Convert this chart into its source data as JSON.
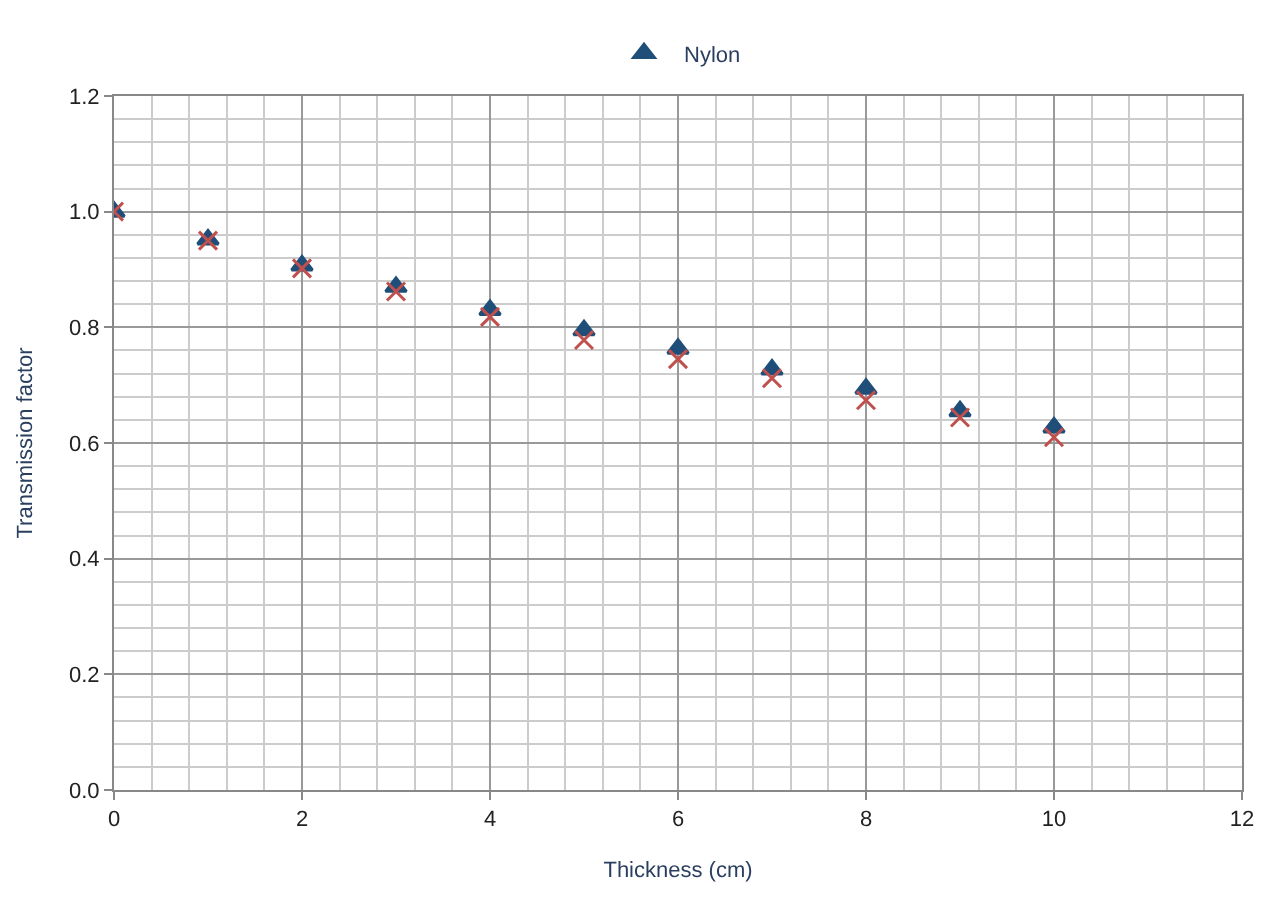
{
  "chart_data": {
    "type": "scatter",
    "xlabel": "Thickness (cm)",
    "ylabel": "Transmission factor",
    "x": [
      0,
      1,
      2,
      3,
      4,
      5,
      6,
      7,
      8,
      9,
      10
    ],
    "series": [
      {
        "name": "Nylon",
        "color": "#1f4e79",
        "marker": "triangle",
        "values": [
          1.0,
          0.952,
          0.907,
          0.87,
          0.83,
          0.795,
          0.763,
          0.727,
          0.694,
          0.655,
          0.627
        ]
      },
      {
        "color": "#c0504d",
        "marker": "cross",
        "values": [
          1.0,
          0.95,
          0.902,
          0.862,
          0.818,
          0.778,
          0.745,
          0.712,
          0.674,
          0.644,
          0.61
        ]
      }
    ],
    "xlim": [
      0,
      12
    ],
    "xticks": [
      0,
      2,
      4,
      6,
      8,
      10,
      12
    ],
    "ylim": [
      0,
      1.2
    ],
    "yticks": [
      {
        "value": 0,
        "label": "0.0"
      },
      0.2,
      0.4,
      0.6,
      0.8,
      {
        "value": 1,
        "label": "1.0"
      },
      1.2
    ],
    "grid": true,
    "legend": "top"
  }
}
